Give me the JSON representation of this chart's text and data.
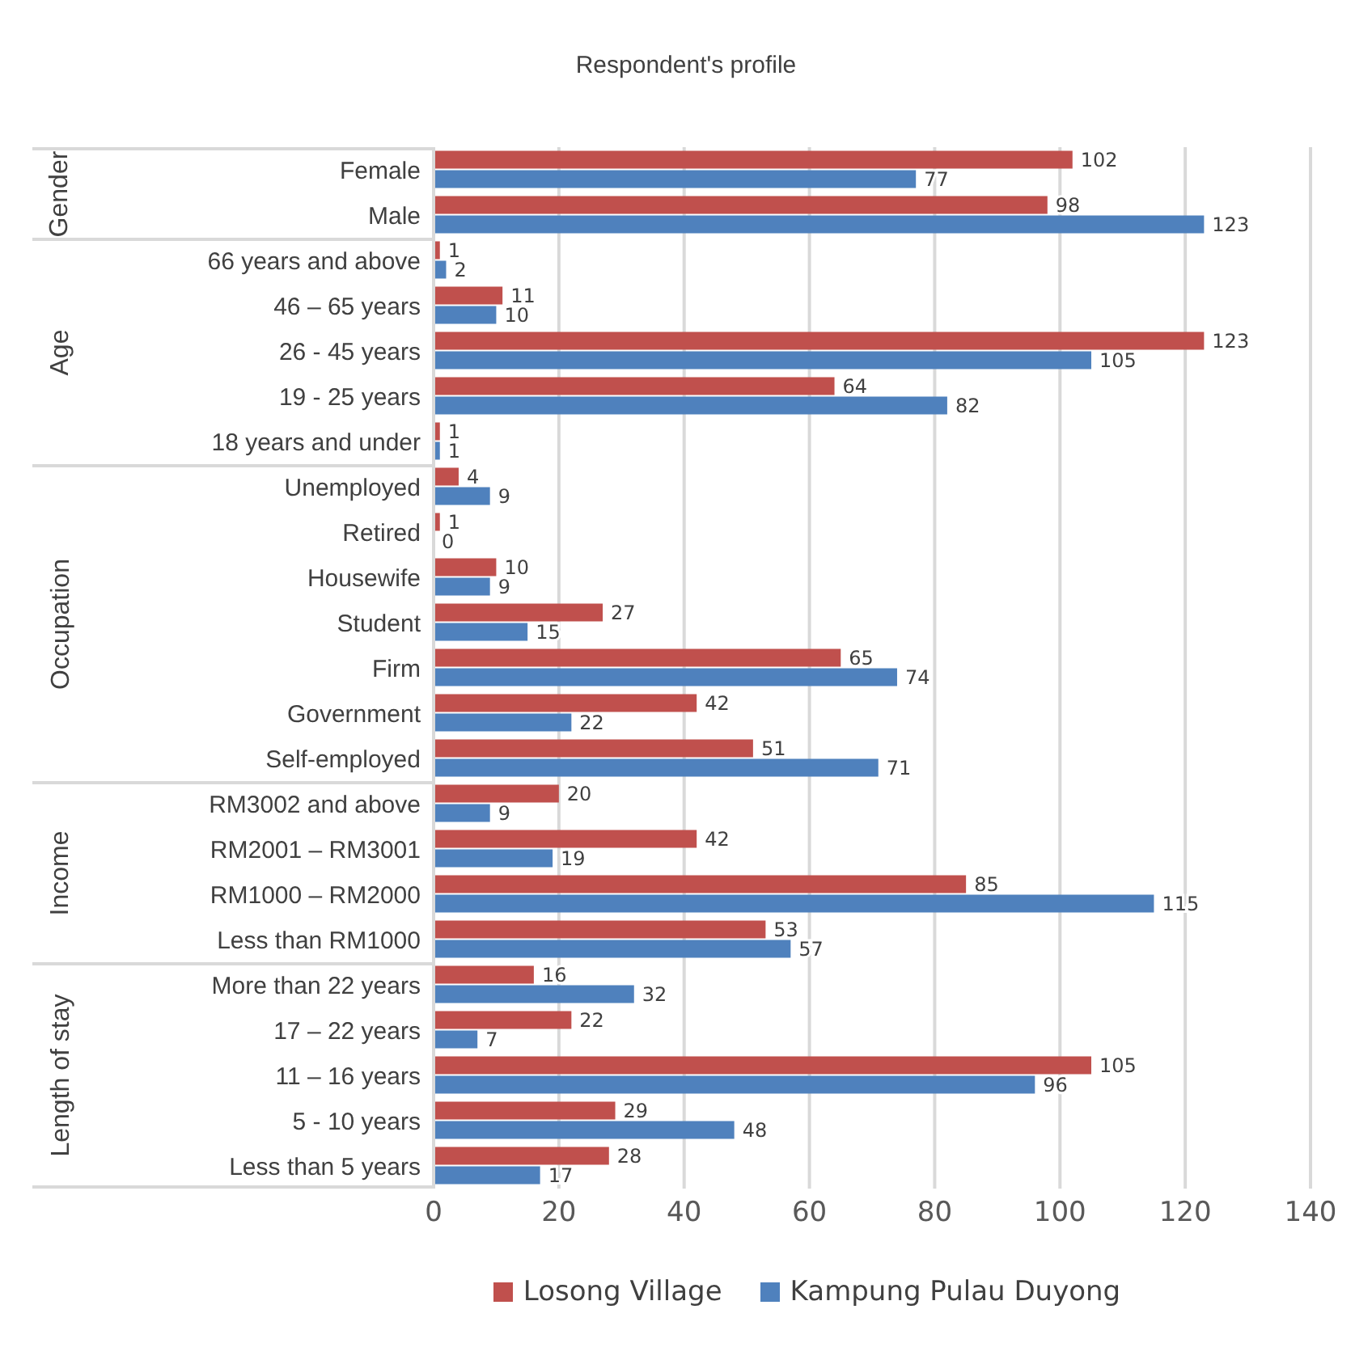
{
  "chart_data": {
    "type": "bar",
    "orientation": "horizontal",
    "title": "Respondent's profile",
    "categories": [
      "Female",
      "Male",
      "66 years and above",
      "46 – 65 years",
      "26 - 45 years",
      "19 - 25 years",
      "18 years and under",
      "Unemployed",
      "Retired",
      "Housewife",
      "Student",
      "Firm",
      "Government",
      "Self-employed",
      "RM3002 and above",
      "RM2001 – RM3001",
      "RM1000 – RM2000",
      "Less than RM1000",
      "More than 22 years",
      "17 – 22 years",
      "11 – 16 years",
      "5 - 10 years",
      "Less than 5 years"
    ],
    "series": [
      {
        "name": "Losong Village",
        "color": "#c0504d",
        "values": [
          102,
          98,
          1,
          11,
          123,
          64,
          1,
          4,
          1,
          10,
          27,
          65,
          42,
          51,
          20,
          42,
          85,
          53,
          16,
          22,
          105,
          29,
          28
        ]
      },
      {
        "name": "Kampung Pulau Duyong",
        "color": "#4f81bd",
        "values": [
          77,
          123,
          2,
          10,
          105,
          82,
          1,
          9,
          0,
          9,
          15,
          74,
          22,
          71,
          9,
          19,
          115,
          57,
          32,
          7,
          96,
          48,
          17
        ]
      }
    ],
    "annotations": [
      "Gender",
      "Age",
      "Occupation",
      "Income",
      "Length of stay"
    ],
    "xlim": [
      0,
      140
    ],
    "xticks": [
      0,
      20,
      40,
      60,
      80,
      100,
      120,
      140
    ],
    "grid": "x",
    "legend": "bottom",
    "data_labels": true
  }
}
